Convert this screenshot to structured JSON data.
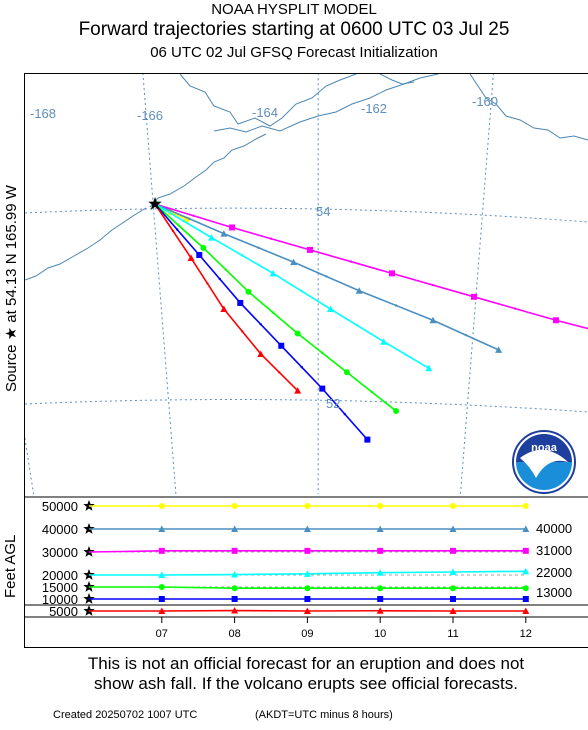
{
  "header": {
    "model": "NOAA HYSPLIT MODEL",
    "title": "Forward trajectories starting at 0600 UTC 03 Jul 25",
    "subtitle": "06 UTC 02 Jul    GFSQ  Forecast Initialization"
  },
  "side_labels": {
    "source": "Source ★ at  54.13 N  165.99 W",
    "height_axis": "Feet AGL"
  },
  "footer": {
    "disclaimer_line1": "This is not an official forecast for an eruption and does not",
    "disclaimer_line2": "show ash fall. If the volcano erupts see official forecasts.",
    "created": "Created 20250702 1007 UTC",
    "timezone_note": "(AKDT=UTC minus 8 hours)"
  },
  "colors": {
    "coast": "#4a86b4",
    "grid": "#5a8fc0",
    "map_labels": "#5d8ebf"
  },
  "logo": {
    "text": "noaa"
  },
  "chart_data": [
    {
      "type": "line",
      "title": "",
      "grid": true,
      "graticule_labels": {
        "longitude": [
          "-168",
          "-166",
          "-164",
          "-162",
          "-160"
        ],
        "latitude": [
          "54",
          "52"
        ]
      },
      "source": {
        "lat": 54.13,
        "lon": -165.99
      },
      "series": [
        {
          "color": "#ffff00",
          "marker": "circle",
          "points": [
            [
              -165.99,
              54.13
            ],
            [
              -165.8,
              54.05
            ],
            [
              -165.6,
              53.98
            ]
          ]
        },
        {
          "color": "#ff00ff",
          "marker": "square",
          "points": [
            [
              -165.99,
              54.13
            ],
            [
              -165.05,
              53.9
            ],
            [
              -164.1,
              53.68
            ],
            [
              -163.1,
              53.45
            ],
            [
              -162.1,
              53.22
            ],
            [
              -161.1,
              52.99
            ],
            [
              -160.0,
              52.76
            ]
          ]
        },
        {
          "color": "#4a8fc0",
          "marker": "triangle",
          "points": [
            [
              -165.99,
              54.13
            ],
            [
              -165.15,
              53.84
            ],
            [
              -164.3,
              53.56
            ],
            [
              -163.5,
              53.28
            ],
            [
              -162.6,
              52.99
            ],
            [
              -161.8,
              52.7
            ]
          ]
        },
        {
          "color": "#00ffff",
          "marker": "triangle",
          "points": [
            [
              -165.99,
              54.13
            ],
            [
              -165.3,
              53.8
            ],
            [
              -164.55,
              53.45
            ],
            [
              -163.85,
              53.1
            ],
            [
              -163.2,
              52.78
            ],
            [
              -162.65,
              52.52
            ]
          ]
        },
        {
          "color": "#00ff00",
          "marker": "circle",
          "points": [
            [
              -165.99,
              54.13
            ],
            [
              -165.4,
              53.7
            ],
            [
              -164.85,
              53.27
            ],
            [
              -164.25,
              52.86
            ],
            [
              -163.65,
              52.48
            ],
            [
              -163.05,
              52.1
            ]
          ]
        },
        {
          "color": "#0000ff",
          "marker": "square",
          "points": [
            [
              -165.99,
              54.13
            ],
            [
              -165.45,
              53.63
            ],
            [
              -164.95,
              53.16
            ],
            [
              -164.45,
              52.74
            ],
            [
              -163.95,
              52.32
            ],
            [
              -163.4,
              51.82
            ]
          ]
        },
        {
          "color": "#ff0000",
          "marker": "triangle",
          "points": [
            [
              -165.99,
              54.13
            ],
            [
              -165.55,
              53.6
            ],
            [
              -165.15,
              53.1
            ],
            [
              -164.7,
              52.66
            ],
            [
              -164.25,
              52.3
            ]
          ]
        }
      ]
    },
    {
      "type": "line",
      "title": "",
      "xlabel": "",
      "ylabel": "Feet AGL",
      "grid": true,
      "x": [
        "06",
        "07",
        "08",
        "09",
        "10",
        "11",
        "12"
      ],
      "x_tick_labels": [
        "07",
        "08",
        "09",
        "10",
        "11",
        "12"
      ],
      "y_tick_labels": [
        "50000",
        "40000",
        "30000",
        "20000",
        "15000",
        "10000",
        "5000"
      ],
      "y_ticks": [
        50000,
        40000,
        30000,
        20000,
        15000,
        10000,
        5000
      ],
      "right_labels": [
        "40000",
        "31000",
        "22000",
        "13000"
      ],
      "series": [
        {
          "color": "#ffff00",
          "marker": "circle",
          "values": [
            50000,
            50000,
            50000,
            50000,
            50000,
            50000,
            50000
          ]
        },
        {
          "color": "#4a8fc0",
          "marker": "triangle",
          "values": [
            40000,
            40000,
            40000,
            40000,
            40000,
            40000,
            40000
          ]
        },
        {
          "color": "#ff00ff",
          "marker": "square",
          "values": [
            30000,
            30500,
            30500,
            30500,
            30500,
            30500,
            30500
          ]
        },
        {
          "color": "#00ffff",
          "marker": "triangle",
          "values": [
            20000,
            20000,
            20200,
            20500,
            21000,
            21300,
            21600
          ]
        },
        {
          "color": "#00ff00",
          "marker": "circle",
          "values": [
            15000,
            15000,
            14500,
            14500,
            14500,
            14500,
            14500
          ]
        },
        {
          "color": "#0000ff",
          "marker": "square",
          "values": [
            10000,
            10000,
            10000,
            10000,
            10000,
            10000,
            10000
          ]
        },
        {
          "color": "#ff0000",
          "marker": "triangle",
          "values": [
            5000,
            5000,
            5200,
            4900,
            5100,
            5000,
            5000
          ]
        }
      ]
    }
  ]
}
